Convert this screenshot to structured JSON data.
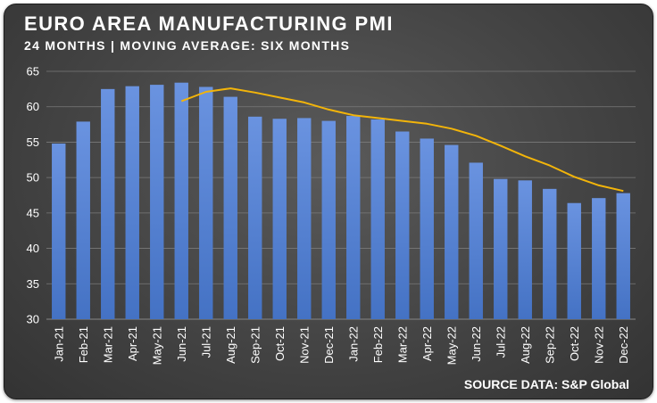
{
  "title": "EURO AREA MANUFACTURING PMI",
  "subtitle": "24 MONTHS | MOVING AVERAGE: SIX MONTHS",
  "source": "SOURCE DATA: S&P Global",
  "colors": {
    "bar": "#4472c4",
    "bar_highlight": "#6a93e0",
    "moving_average": "#f2b40a",
    "gridline": "#7a7a7a",
    "text": "#ffffff",
    "background": "#444444"
  },
  "chart_data": {
    "type": "bar",
    "categories": [
      "Jan-21",
      "Feb-21",
      "Mar-21",
      "Apr-21",
      "May-21",
      "Jun-21",
      "Jul-21",
      "Aug-21",
      "Sep-21",
      "Oct-21",
      "Nov-21",
      "Dec-21",
      "Jan-22",
      "Feb-22",
      "Mar-22",
      "Apr-22",
      "May-22",
      "Jun-22",
      "Jul-22",
      "Aug-22",
      "Sep-22",
      "Oct-22",
      "Nov-22",
      "Dec-22"
    ],
    "series": [
      {
        "type": "bar",
        "values": [
          54.8,
          57.9,
          62.5,
          62.9,
          63.1,
          63.4,
          62.8,
          61.4,
          58.6,
          58.3,
          58.4,
          58.0,
          58.7,
          58.2,
          56.5,
          55.5,
          54.6,
          52.1,
          49.8,
          49.6,
          48.4,
          46.4,
          47.1,
          47.8
        ]
      },
      {
        "type": "line",
        "values": [
          null,
          null,
          null,
          null,
          null,
          60.8,
          62.1,
          62.6,
          62.0,
          61.3,
          60.6,
          59.6,
          58.8,
          58.4,
          58.0,
          57.6,
          56.9,
          55.9,
          54.5,
          53.0,
          51.7,
          50.1,
          48.9,
          48.1
        ]
      }
    ],
    "yticks": [
      30,
      35,
      40,
      45,
      50,
      55,
      60,
      65
    ],
    "ylim": [
      30,
      65
    ],
    "grid": true,
    "legend": "none"
  }
}
